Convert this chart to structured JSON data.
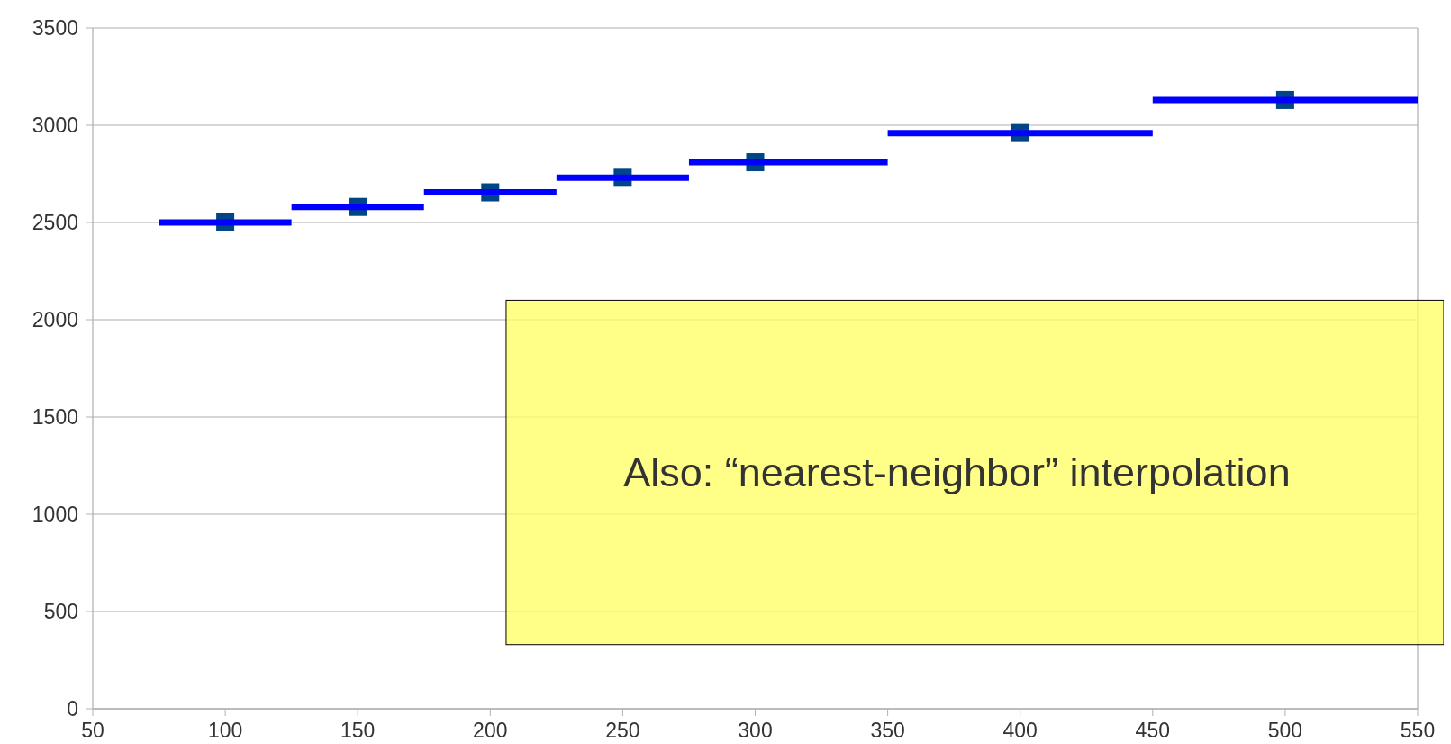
{
  "chart_data": {
    "type": "scatter",
    "grid": "y",
    "xlim": [
      50,
      550
    ],
    "ylim": [
      0,
      3500
    ],
    "xticks": [
      50,
      100,
      150,
      200,
      250,
      300,
      350,
      400,
      450,
      500,
      550
    ],
    "yticks": [
      0,
      500,
      1000,
      1500,
      2000,
      2500,
      3000,
      3500
    ],
    "annotations": [
      "Also: “nearest-neighbor” interpolation"
    ],
    "series": [
      {
        "marker": "square",
        "color": "#004586",
        "x": [
          100,
          150,
          200,
          250,
          300,
          400,
          500
        ],
        "values": [
          2500,
          2580,
          2655,
          2730,
          2810,
          2960,
          3130
        ]
      },
      {
        "type": "line",
        "color": "#0000ff",
        "x": [
          75,
          125
        ],
        "values": [
          2500,
          2500
        ]
      },
      {
        "type": "line",
        "color": "#0000ff",
        "x": [
          125,
          175
        ],
        "values": [
          2580,
          2580
        ]
      },
      {
        "type": "line",
        "color": "#0000ff",
        "x": [
          175,
          225
        ],
        "values": [
          2655,
          2655
        ]
      },
      {
        "type": "line",
        "color": "#0000ff",
        "x": [
          225,
          275
        ],
        "values": [
          2730,
          2730
        ]
      },
      {
        "type": "line",
        "color": "#0000ff",
        "x": [
          275,
          350
        ],
        "values": [
          2810,
          2810
        ]
      },
      {
        "type": "line",
        "color": "#0000ff",
        "x": [
          350,
          450
        ],
        "values": [
          2960,
          2960
        ]
      },
      {
        "type": "line",
        "color": "#0000ff",
        "x": [
          450,
          550
        ],
        "values": [
          3130,
          3130
        ]
      }
    ]
  }
}
